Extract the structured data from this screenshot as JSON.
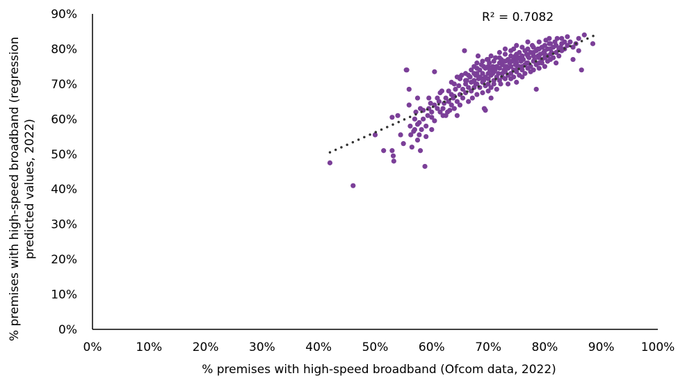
{
  "chart_data": {
    "type": "scatter",
    "xlabel": "% premises with high-speed broadband (Ofcom data, 2022)",
    "ylabel_lines": [
      "% premises with high-speed broadband (regression",
      "predicted values, 2022)"
    ],
    "x_ticks": [
      "0%",
      "10%",
      "20%",
      "30%",
      "40%",
      "50%",
      "60%",
      "70%",
      "80%",
      "90%",
      "100%"
    ],
    "y_ticks": [
      "0%",
      "10%",
      "20%",
      "30%",
      "40%",
      "50%",
      "60%",
      "70%",
      "80%",
      "90%"
    ],
    "xlim": [
      0,
      100
    ],
    "ylim": [
      0,
      90
    ],
    "grid": false,
    "annotation": "R² = 0.7082",
    "trendline": {
      "style": "dotted",
      "x_start": 42,
      "x_end": 89,
      "y_start": 50.5,
      "y_end": 84
    },
    "point_color": "#7b3f98",
    "trendline_color": "#333333",
    "points": [
      [
        42,
        47.5
      ],
      [
        46.1,
        41
      ],
      [
        50,
        55.5
      ],
      [
        51.5,
        51
      ],
      [
        53,
        51
      ],
      [
        53.2,
        49.5
      ],
      [
        53.3,
        48
      ],
      [
        53,
        60.5
      ],
      [
        54,
        61
      ],
      [
        54.5,
        55.5
      ],
      [
        55,
        53
      ],
      [
        55.5,
        74
      ],
      [
        55.6,
        74
      ],
      [
        56,
        64
      ],
      [
        56,
        68.5
      ],
      [
        56.2,
        58
      ],
      [
        56.3,
        55.5
      ],
      [
        56.5,
        52
      ],
      [
        56.8,
        56.5
      ],
      [
        57,
        60
      ],
      [
        57,
        57
      ],
      [
        57.2,
        62
      ],
      [
        57.5,
        58.5
      ],
      [
        57.5,
        54
      ],
      [
        57.8,
        59
      ],
      [
        57.8,
        55.5
      ],
      [
        58,
        51
      ],
      [
        58,
        63
      ],
      [
        58.2,
        57
      ],
      [
        58.5,
        60
      ],
      [
        58.5,
        62.5
      ],
      [
        58.8,
        46.5
      ],
      [
        59,
        58
      ],
      [
        59,
        55
      ],
      [
        59.3,
        61
      ],
      [
        59.5,
        63
      ],
      [
        59.5,
        66
      ],
      [
        60,
        57
      ],
      [
        60,
        60.5
      ],
      [
        60,
        62
      ],
      [
        60.5,
        73.5
      ],
      [
        60.5,
        64
      ],
      [
        61,
        63
      ],
      [
        61,
        66
      ],
      [
        61.3,
        65
      ],
      [
        61.5,
        62
      ],
      [
        61.5,
        67.5
      ],
      [
        62,
        61
      ],
      [
        62,
        63
      ],
      [
        62.2,
        64.5
      ],
      [
        62.5,
        66
      ],
      [
        62.5,
        61
      ],
      [
        63,
        65
      ],
      [
        63,
        68
      ],
      [
        63.2,
        62.5
      ],
      [
        63.5,
        64
      ],
      [
        63.5,
        67
      ],
      [
        63.8,
        66
      ],
      [
        64,
        70
      ],
      [
        64,
        63
      ],
      [
        64.2,
        68.5
      ],
      [
        64.5,
        61
      ],
      [
        64.5,
        65
      ],
      [
        64.8,
        69.5
      ],
      [
        65,
        67
      ],
      [
        65,
        64
      ],
      [
        65,
        71.5
      ],
      [
        65.3,
        72.5
      ],
      [
        65.5,
        66
      ],
      [
        65.5,
        68.5
      ],
      [
        65.8,
        79.5
      ],
      [
        66,
        70
      ],
      [
        66,
        73
      ],
      [
        66,
        67.5
      ],
      [
        66.2,
        71
      ],
      [
        66.5,
        69
      ],
      [
        66.5,
        65
      ],
      [
        66.8,
        72
      ],
      [
        67,
        74
      ],
      [
        67,
        68
      ],
      [
        67,
        70.5
      ],
      [
        67.2,
        66
      ],
      [
        67.5,
        71
      ],
      [
        67.5,
        75
      ],
      [
        67.5,
        69
      ],
      [
        67.8,
        72.5
      ],
      [
        68,
        73
      ],
      [
        68,
        70
      ],
      [
        68,
        67
      ],
      [
        68,
        76
      ],
      [
        68.2,
        78
      ],
      [
        68.3,
        71.5
      ],
      [
        68.5,
        74
      ],
      [
        68.5,
        69
      ],
      [
        68.5,
        72
      ],
      [
        68.8,
        75.5
      ],
      [
        69,
        70.5
      ],
      [
        69,
        73
      ],
      [
        69,
        67.5
      ],
      [
        69,
        76.5
      ],
      [
        69.2,
        71
      ],
      [
        69.3,
        63
      ],
      [
        69.5,
        74.5
      ],
      [
        69.5,
        72
      ],
      [
        69.5,
        69.5
      ],
      [
        69.5,
        62.5
      ],
      [
        69.8,
        77
      ],
      [
        70,
        73
      ],
      [
        70,
        75
      ],
      [
        70,
        70
      ],
      [
        70,
        68
      ],
      [
        70,
        71.5
      ],
      [
        70.2,
        76
      ],
      [
        70.3,
        74
      ],
      [
        70.5,
        72.5
      ],
      [
        70.5,
        69
      ],
      [
        70.5,
        78
      ],
      [
        70.5,
        66
      ],
      [
        70.8,
        75
      ],
      [
        71,
        73.5
      ],
      [
        71,
        71
      ],
      [
        71,
        76.5
      ],
      [
        71,
        70
      ],
      [
        71.2,
        74
      ],
      [
        71.3,
        77.5
      ],
      [
        71.5,
        72
      ],
      [
        71.5,
        75
      ],
      [
        71.5,
        68.5
      ],
      [
        71.8,
        73
      ],
      [
        72,
        76
      ],
      [
        72,
        71
      ],
      [
        72,
        74.5
      ],
      [
        72,
        79
      ],
      [
        72.2,
        70
      ],
      [
        72.3,
        77
      ],
      [
        72.5,
        73
      ],
      [
        72.5,
        75.5
      ],
      [
        72.5,
        72
      ],
      [
        72.8,
        74
      ],
      [
        73,
        76.5
      ],
      [
        73,
        71.5
      ],
      [
        73,
        78.5
      ],
      [
        73,
        73.5
      ],
      [
        73,
        80
      ],
      [
        73.2,
        75
      ],
      [
        73.5,
        72.5
      ],
      [
        73.5,
        77
      ],
      [
        73.5,
        74.5
      ],
      [
        73.5,
        70
      ],
      [
        73.8,
        76
      ],
      [
        74,
        73
      ],
      [
        74,
        78
      ],
      [
        74,
        75
      ],
      [
        74,
        71.5
      ],
      [
        74,
        79.5
      ],
      [
        74.2,
        76.5
      ],
      [
        74.5,
        74
      ],
      [
        74.5,
        77
      ],
      [
        74.5,
        72
      ],
      [
        74.5,
        80
      ],
      [
        74.8,
        75.5
      ],
      [
        75,
        73.5
      ],
      [
        75,
        78.5
      ],
      [
        75,
        76
      ],
      [
        75,
        70.5
      ],
      [
        75,
        81
      ],
      [
        75.2,
        74.5
      ],
      [
        75.5,
        77.5
      ],
      [
        75.5,
        75
      ],
      [
        75.5,
        72.5
      ],
      [
        75.5,
        79
      ],
      [
        75.8,
        76.5
      ],
      [
        76,
        74
      ],
      [
        76,
        78
      ],
      [
        76,
        80.5
      ],
      [
        76,
        72
      ],
      [
        76.2,
        77
      ],
      [
        76.5,
        75.5
      ],
      [
        76.5,
        79.5
      ],
      [
        76.5,
        73
      ],
      [
        76.8,
        78.5
      ],
      [
        77,
        76
      ],
      [
        77,
        80
      ],
      [
        77,
        74.5
      ],
      [
        77,
        82
      ],
      [
        77.2,
        77.5
      ],
      [
        77.5,
        75
      ],
      [
        77.5,
        79
      ],
      [
        77.5,
        73.5
      ],
      [
        77.8,
        81
      ],
      [
        78,
        76.5
      ],
      [
        78,
        78
      ],
      [
        78,
        74
      ],
      [
        78,
        80.5
      ],
      [
        78.2,
        77
      ],
      [
        78.5,
        79.5
      ],
      [
        78.5,
        75.5
      ],
      [
        78.5,
        68.5
      ],
      [
        78.8,
        78
      ],
      [
        79,
        76
      ],
      [
        79,
        80
      ],
      [
        79,
        82
      ],
      [
        79,
        74.5
      ],
      [
        79.2,
        78.5
      ],
      [
        79.5,
        77
      ],
      [
        79.5,
        80.5
      ],
      [
        79.5,
        76
      ],
      [
        79.8,
        79
      ],
      [
        80,
        77.5
      ],
      [
        80,
        81
      ],
      [
        80,
        75
      ],
      [
        80,
        79.5
      ],
      [
        80.2,
        82.5
      ],
      [
        80.5,
        78
      ],
      [
        80.5,
        76.5
      ],
      [
        80.5,
        80
      ],
      [
        80.8,
        83
      ],
      [
        81,
        78.5
      ],
      [
        81,
        77
      ],
      [
        81,
        81.5
      ],
      [
        81.2,
        79
      ],
      [
        81.5,
        80.5
      ],
      [
        81.5,
        77.5
      ],
      [
        81.8,
        82
      ],
      [
        82,
        79
      ],
      [
        82,
        81
      ],
      [
        82,
        76
      ],
      [
        82.2,
        83
      ],
      [
        82.5,
        80
      ],
      [
        82.5,
        78
      ],
      [
        83,
        81.5
      ],
      [
        83,
        83
      ],
      [
        83,
        79.5
      ],
      [
        83.5,
        82
      ],
      [
        83.5,
        80
      ],
      [
        84,
        81
      ],
      [
        84,
        83.5
      ],
      [
        84.5,
        82
      ],
      [
        85,
        80.5
      ],
      [
        85,
        77
      ],
      [
        85.5,
        81.5
      ],
      [
        86,
        83
      ],
      [
        86,
        79.5
      ],
      [
        86.5,
        74
      ],
      [
        87,
        84
      ],
      [
        88.5,
        81.5
      ],
      [
        65,
        72
      ],
      [
        66,
        71
      ],
      [
        67.5,
        73
      ],
      [
        68,
        74.5
      ],
      [
        69,
        71.5
      ],
      [
        70,
        77
      ],
      [
        71,
        74.5
      ],
      [
        72,
        77.5
      ],
      [
        73,
        75
      ],
      [
        74,
        76.5
      ],
      [
        75,
        77
      ],
      [
        76,
        75
      ],
      [
        77,
        78
      ],
      [
        78,
        79
      ],
      [
        79,
        77.5
      ],
      [
        80,
        78.5
      ],
      [
        81,
        80
      ],
      [
        62.8,
        62
      ],
      [
        64,
        66.5
      ],
      [
        66.5,
        72.5
      ],
      [
        67.8,
        70
      ],
      [
        69.2,
        75
      ],
      [
        70.8,
        73
      ],
      [
        72.8,
        76.5
      ],
      [
        74.8,
        78
      ],
      [
        76.8,
        76
      ],
      [
        78.8,
        80
      ],
      [
        80.8,
        81.5
      ],
      [
        82.8,
        80.5
      ],
      [
        61.8,
        68
      ],
      [
        63.5,
        70.5
      ],
      [
        64.5,
        72
      ],
      [
        60.5,
        59.5
      ],
      [
        59.8,
        64.5
      ],
      [
        57.5,
        66
      ]
    ]
  }
}
